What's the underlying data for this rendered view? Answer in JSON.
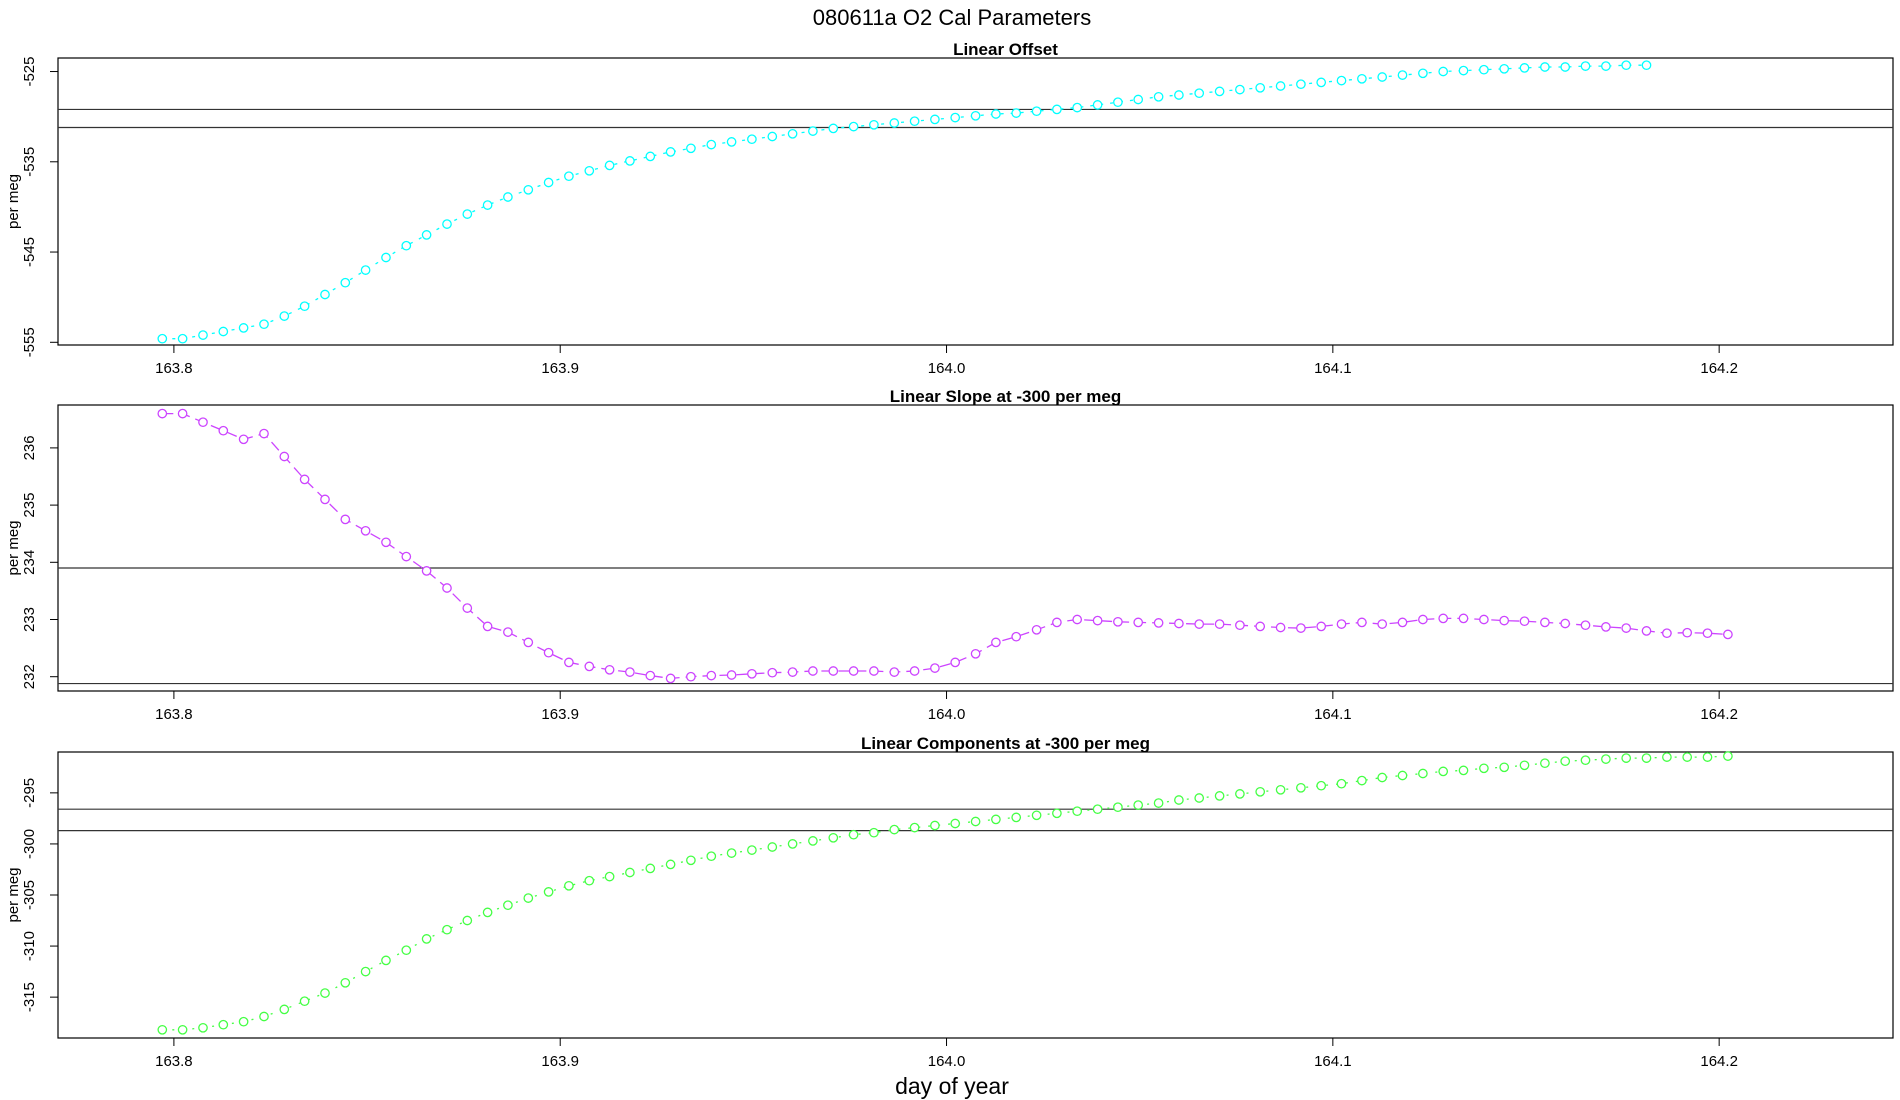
{
  "figure": {
    "title": "080611a   O2 Cal Parameters",
    "xlabel": "day of year"
  },
  "chart_data": [
    {
      "type": "line",
      "title": "Linear Offset",
      "ylabel": "per meg",
      "xlim": [
        163.77,
        164.245
      ],
      "ylim": [
        -555.3,
        -523.5
      ],
      "yticks": [
        -525,
        -535,
        -545,
        -555
      ],
      "xticks": [
        "163.8",
        "163.9",
        "164.0",
        "164.1",
        "164.2"
      ],
      "hlines": [
        -529.2,
        -531.2
      ],
      "color": "#00ffff",
      "grid": false,
      "series": [
        {
          "x_start": 163.797,
          "x_step": 0.005263,
          "values": [
            -554.6,
            -554.6,
            -554.2,
            -553.8,
            -553.4,
            -553.0,
            -552.1,
            -551.0,
            -549.7,
            -548.4,
            -547.0,
            -545.6,
            -544.3,
            -543.1,
            -541.9,
            -540.8,
            -539.8,
            -538.9,
            -538.1,
            -537.3,
            -536.6,
            -536.0,
            -535.4,
            -534.9,
            -534.4,
            -533.9,
            -533.5,
            -533.1,
            -532.8,
            -532.5,
            -532.2,
            -531.9,
            -531.6,
            -531.3,
            -531.1,
            -530.9,
            -530.7,
            -530.5,
            -530.3,
            -530.1,
            -529.9,
            -529.7,
            -529.6,
            -529.4,
            -529.2,
            -529.0,
            -528.7,
            -528.4,
            -528.1,
            -527.8,
            -527.6,
            -527.4,
            -527.2,
            -527.0,
            -526.8,
            -526.6,
            -526.4,
            -526.2,
            -526.0,
            -525.8,
            -525.6,
            -525.4,
            -525.2,
            -525.0,
            -524.9,
            -524.8,
            -524.7,
            -524.6,
            -524.5,
            -524.5,
            -524.4,
            -524.4,
            -524.3,
            -524.3
          ]
        }
      ]
    },
    {
      "type": "line",
      "title": "Linear Slope at -300 per meg",
      "ylabel": "per meg",
      "xlim": [
        163.77,
        164.245
      ],
      "ylim": [
        231.75,
        236.75
      ],
      "yticks": [
        232,
        233,
        234,
        235,
        236
      ],
      "xticks": [
        "163.8",
        "163.9",
        "164.0",
        "164.1",
        "164.2"
      ],
      "hlines": [
        233.9,
        231.88
      ],
      "color": "#cc44ff",
      "grid": false,
      "series": [
        {
          "x_start": 163.797,
          "x_step": 0.005263,
          "values": [
            236.6,
            236.6,
            236.45,
            236.3,
            236.15,
            236.25,
            235.85,
            235.45,
            235.1,
            234.75,
            234.55,
            234.35,
            234.1,
            233.85,
            233.55,
            233.2,
            232.88,
            232.78,
            232.6,
            232.42,
            232.25,
            232.18,
            232.12,
            232.08,
            232.02,
            231.97,
            232.0,
            232.02,
            232.03,
            232.05,
            232.07,
            232.08,
            232.1,
            232.1,
            232.1,
            232.1,
            232.08,
            232.1,
            232.15,
            232.25,
            232.4,
            232.6,
            232.7,
            232.82,
            232.95,
            233.0,
            232.98,
            232.96,
            232.95,
            232.94,
            232.93,
            232.92,
            232.92,
            232.9,
            232.88,
            232.86,
            232.85,
            232.88,
            232.92,
            232.95,
            232.92,
            232.95,
            233.0,
            233.02,
            233.02,
            233.0,
            232.98,
            232.97,
            232.95,
            232.93,
            232.9,
            232.87,
            232.85,
            232.8,
            232.76,
            232.77,
            232.76,
            232.74
          ]
        }
      ]
    },
    {
      "type": "line",
      "title": "Linear Components at -300 per meg",
      "ylabel": "per meg",
      "xlim": [
        163.77,
        164.245
      ],
      "ylim": [
        -319.0,
        -291.0
      ],
      "yticks": [
        -295,
        -300,
        -305,
        -310,
        -315
      ],
      "xticks": [
        "163.8",
        "163.9",
        "164.0",
        "164.1",
        "164.2"
      ],
      "hlines": [
        -296.6,
        -298.7
      ],
      "color": "#44ff44",
      "grid": false,
      "series": [
        {
          "x_start": 163.797,
          "x_step": 0.005263,
          "values": [
            -318.2,
            -318.2,
            -318.0,
            -317.7,
            -317.4,
            -316.9,
            -316.2,
            -315.4,
            -314.6,
            -313.6,
            -312.5,
            -311.4,
            -310.4,
            -309.3,
            -308.4,
            -307.5,
            -306.7,
            -306.0,
            -305.3,
            -304.7,
            -304.1,
            -303.6,
            -303.2,
            -302.8,
            -302.4,
            -302.0,
            -301.6,
            -301.2,
            -300.9,
            -300.6,
            -300.3,
            -300.0,
            -299.7,
            -299.4,
            -299.1,
            -298.9,
            -298.6,
            -298.4,
            -298.2,
            -298.0,
            -297.8,
            -297.6,
            -297.4,
            -297.2,
            -297.0,
            -296.8,
            -296.6,
            -296.4,
            -296.2,
            -296.0,
            -295.7,
            -295.5,
            -295.3,
            -295.1,
            -294.9,
            -294.7,
            -294.5,
            -294.3,
            -294.1,
            -293.8,
            -293.5,
            -293.3,
            -293.1,
            -292.9,
            -292.8,
            -292.6,
            -292.5,
            -292.3,
            -292.1,
            -291.9,
            -291.8,
            -291.7,
            -291.6,
            -291.6,
            -291.5,
            -291.5,
            -291.5,
            -291.4
          ]
        }
      ]
    }
  ]
}
